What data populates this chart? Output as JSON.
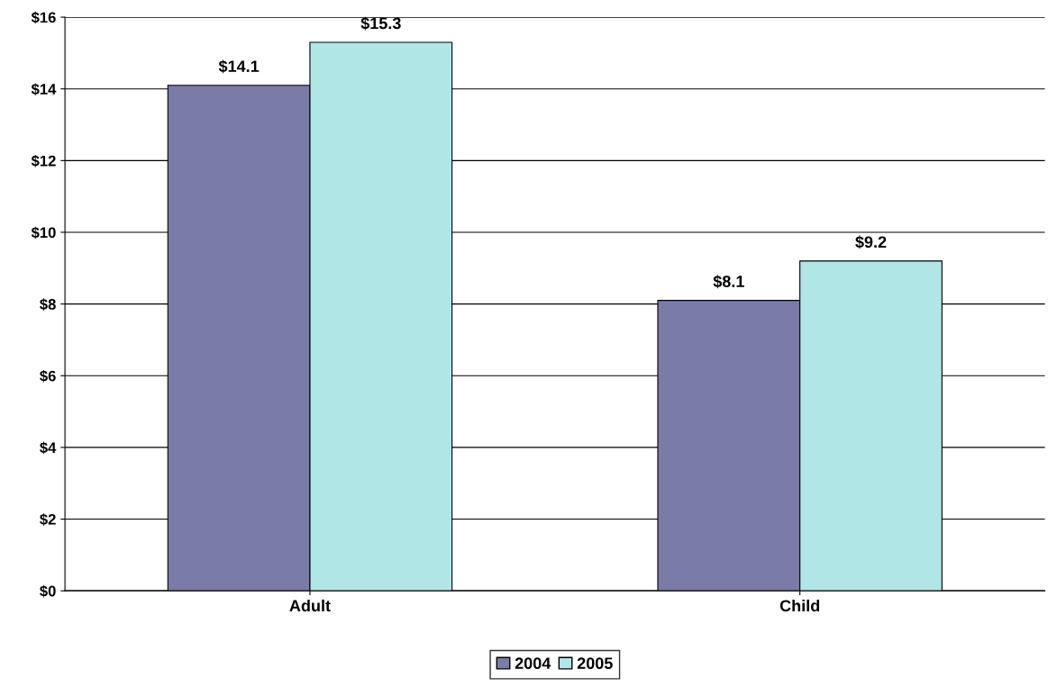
{
  "chart_data": {
    "type": "bar",
    "categories": [
      "Adult",
      "Child"
    ],
    "series": [
      {
        "name": "2004",
        "color": "#7b7ba8",
        "values": [
          14.1,
          8.1
        ],
        "value_labels": [
          "$14.1",
          "$8.1"
        ]
      },
      {
        "name": "2005",
        "color": "#b0e6e6",
        "values": [
          15.3,
          9.2
        ],
        "value_labels": [
          "$15.3",
          "$9.2"
        ]
      }
    ],
    "ylim": [
      0,
      16
    ],
    "yticks": [
      {
        "value": 0,
        "label": "$0"
      },
      {
        "value": 2,
        "label": "$2"
      },
      {
        "value": 4,
        "label": "$4"
      },
      {
        "value": 6,
        "label": "$6"
      },
      {
        "value": 8,
        "label": "$8"
      },
      {
        "value": 10,
        "label": "$10"
      },
      {
        "value": 12,
        "label": "$12"
      },
      {
        "value": 14,
        "label": "$14"
      },
      {
        "value": 16,
        "label": "$16"
      }
    ],
    "grid": "y",
    "legend": "bottom"
  }
}
